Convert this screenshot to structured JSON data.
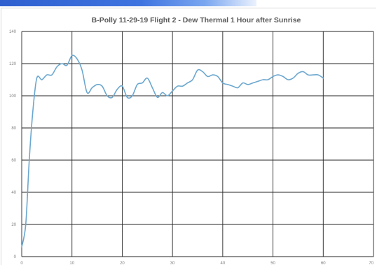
{
  "chart_data": {
    "type": "line",
    "title": "B-Polly 11-29-19 Flight 2 - Dew Thermal  1 Hour after Sunrise",
    "xlabel": "",
    "ylabel": "",
    "xlim": [
      0,
      70
    ],
    "ylim": [
      0,
      140
    ],
    "x_ticks": [
      0,
      10,
      20,
      30,
      40,
      50,
      60,
      70
    ],
    "y_ticks": [
      0,
      20,
      40,
      60,
      80,
      100,
      120,
      140
    ],
    "grid": true,
    "legend": "none",
    "line_color": "#6ba7cf",
    "series": [
      {
        "x": [
          0,
          0.8,
          1.5,
          2.2,
          3.0,
          4.0,
          5.0,
          6.0,
          7.0,
          8.0,
          9.0,
          10.0,
          11.0,
          12.0,
          13.0,
          14.0,
          15.0,
          16.0,
          17.0,
          18.0,
          19.0,
          20.0,
          21.0,
          22.0,
          23.0,
          24.0,
          25.0,
          26.0,
          27.0,
          28.0,
          29.0,
          30.0,
          31.0,
          32.0,
          33.0,
          34.0,
          35.0,
          36.0,
          37.0,
          38.0,
          39.0,
          40.0,
          41.0,
          42.0,
          43.0,
          44.0,
          45.0,
          46.0,
          47.0,
          48.0,
          49.0,
          50.0,
          51.0,
          52.0,
          53.0,
          54.0,
          55.0,
          56.0,
          57.0,
          58.0,
          59.0,
          60.0
        ],
        "y": [
          6,
          20,
          60,
          90,
          111,
          110,
          113,
          113,
          118,
          120,
          119,
          125,
          123,
          116,
          102,
          105,
          107,
          106,
          100,
          99,
          104,
          106,
          99,
          100,
          107,
          108,
          111,
          105,
          99,
          102,
          100,
          103,
          106,
          106,
          108,
          110,
          116,
          115,
          112,
          113,
          112,
          108,
          107,
          106,
          105,
          108,
          107,
          108,
          109,
          110,
          110,
          112,
          113,
          112,
          110,
          111,
          114,
          115,
          113,
          113,
          113,
          111
        ]
      }
    ]
  }
}
